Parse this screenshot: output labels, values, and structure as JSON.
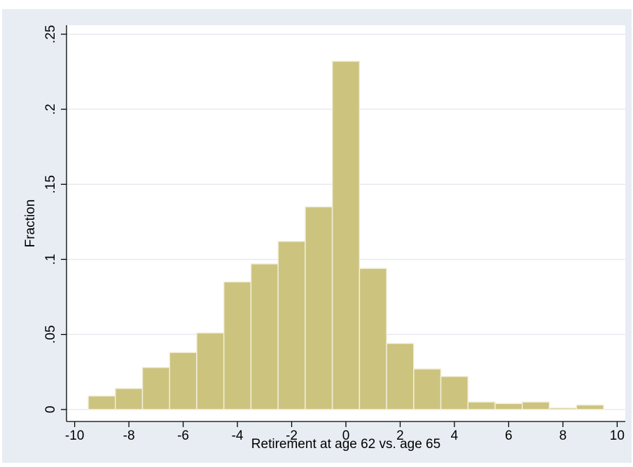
{
  "chart_data": {
    "type": "bar",
    "subtype": "histogram",
    "title": "",
    "xlabel": "Retirement at age 62 vs. age 65",
    "ylabel": "Fraction",
    "xlim": [
      -10.3,
      10.3
    ],
    "ylim": [
      -0.008,
      0.256
    ],
    "xticks": [
      -10,
      -8,
      -6,
      -4,
      -2,
      0,
      2,
      4,
      6,
      8,
      10
    ],
    "xtick_labels": [
      "-10",
      "-8",
      "-6",
      "-4",
      "-2",
      "0",
      "2",
      "4",
      "6",
      "8",
      "10"
    ],
    "yticks": [
      0,
      0.05,
      0.1,
      0.15,
      0.2,
      0.25
    ],
    "ytick_labels": [
      "0",
      ".05",
      ".1",
      ".15",
      ".2",
      ".25"
    ],
    "bin_width": 1,
    "bin_starts": [
      -9.5,
      -8.5,
      -7.5,
      -6.5,
      -5.5,
      -4.5,
      -3.5,
      -2.5,
      -1.5,
      -0.5,
      0.5,
      1.5,
      2.5,
      3.5,
      4.5,
      5.5,
      6.5,
      7.5,
      8.5
    ],
    "values": [
      0.009,
      0.014,
      0.028,
      0.038,
      0.051,
      0.085,
      0.097,
      0.112,
      0.135,
      0.232,
      0.094,
      0.044,
      0.027,
      0.022,
      0.005,
      0.004,
      0.005,
      0.001,
      0.003
    ],
    "grid": true,
    "legend": "none",
    "colors": {
      "bar_fill": "#ccc37f",
      "bar_edge": "#f2efd8",
      "plot_background": "#ffffff",
      "outer_background": "#e8edf4",
      "gridline": "#e6ebf1"
    }
  }
}
